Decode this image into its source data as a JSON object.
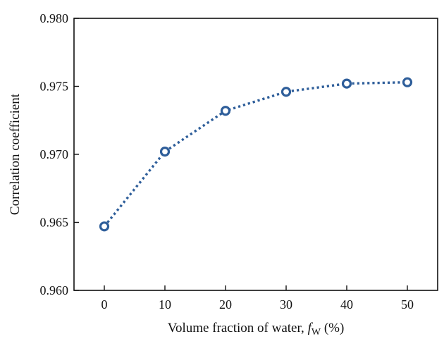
{
  "chart_data": {
    "type": "line",
    "title": "",
    "xlabel_prefix": "Volume fraction of water, ",
    "xlabel_symbol": "f",
    "xlabel_subscript": "W",
    "xlabel_suffix": " (%)",
    "ylabel": "Correlation coefficient",
    "xlim": [
      -5,
      55
    ],
    "ylim": [
      0.96,
      0.98
    ],
    "xticks": [
      0,
      10,
      20,
      30,
      40,
      50
    ],
    "xtick_labels": [
      "0",
      "10",
      "20",
      "30",
      "40",
      "50"
    ],
    "yticks": [
      0.96,
      0.965,
      0.97,
      0.975,
      0.98
    ],
    "ytick_labels": [
      "0.960",
      "0.965",
      "0.970",
      "0.975",
      "0.980"
    ],
    "grid": false,
    "series": [
      {
        "color": "#2e5e9a",
        "line_style": "dotted",
        "marker": "open-circle",
        "x": [
          0,
          10,
          20,
          30,
          40,
          50
        ],
        "y": [
          0.9647,
          0.9702,
          0.9732,
          0.9746,
          0.9752,
          0.9753
        ]
      }
    ]
  }
}
